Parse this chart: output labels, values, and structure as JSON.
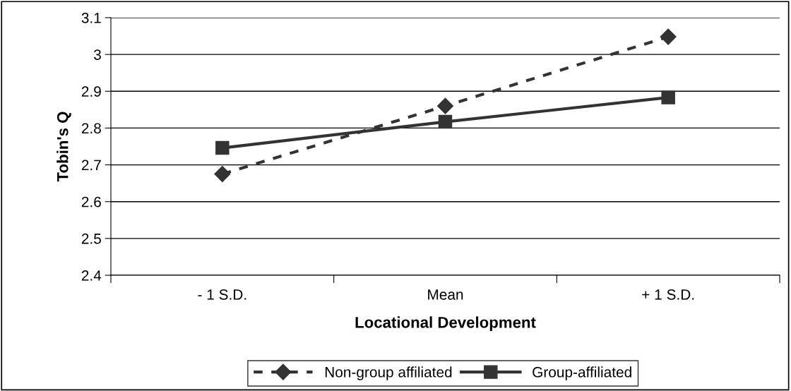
{
  "chart_data": {
    "type": "line",
    "xlabel": "Locational Development",
    "ylabel": "Tobin's Q",
    "categories": [
      "- 1 S.D.",
      "Mean",
      "+ 1 S.D."
    ],
    "series": [
      {
        "name": "Non-group affiliated",
        "color": "#333333",
        "values": [
          2.675,
          2.86,
          3.048
        ],
        "marker": "diamond",
        "line_style": "dashed"
      },
      {
        "name": "Group-affiliated",
        "color": "#333333",
        "values": [
          2.746,
          2.817,
          2.883
        ],
        "marker": "square",
        "line_style": "solid"
      }
    ],
    "ylim": [
      2.4,
      3.1
    ],
    "yticks": [
      2.4,
      2.5,
      2.6,
      2.7,
      2.8,
      2.9,
      3,
      3.1
    ],
    "grid": "y",
    "legend": "bottom"
  }
}
